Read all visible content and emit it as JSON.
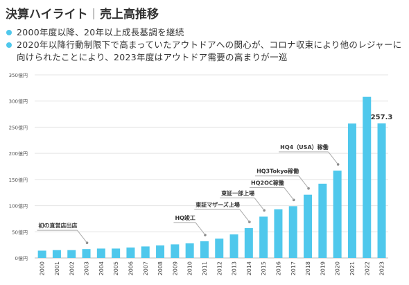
{
  "header": {
    "title": "決算ハイライト",
    "separator": "|",
    "subtitle": "売上高推移"
  },
  "bullets": [
    "2000年度以降、20年以上成長基調を継続",
    "2020年以降行動制限下で高まっていたアウトドアへの関心が、コロナ収束により他のレジャーに向けられたことにより、2023年度はアウトドア需要の高まりが一巡"
  ],
  "colors": {
    "bar": "#4fc8ec",
    "bullet_dot": "#4fc8ec",
    "grid": "#e4e4e4",
    "annotation_line": "#aaaaaa"
  },
  "chart_data": {
    "type": "bar",
    "categories": [
      "2000",
      "2001",
      "2002",
      "2003",
      "2004",
      "2005",
      "2006",
      "2007",
      "2008",
      "2009",
      "2010",
      "2011",
      "2012",
      "2013",
      "2014",
      "2015",
      "2016",
      "2017",
      "2018",
      "2019",
      "2020",
      "2021",
      "2022",
      "2023"
    ],
    "values": [
      14,
      15,
      15,
      17,
      18,
      18,
      20,
      22,
      24,
      26,
      28,
      32,
      37,
      45,
      57,
      79,
      93,
      99,
      121,
      142,
      167,
      257,
      308,
      257.3
    ],
    "ylim": [
      0,
      350
    ],
    "yticks": [
      0,
      50,
      100,
      150,
      200,
      250,
      300,
      350
    ],
    "ytick_labels": [
      "0億円",
      "50億円",
      "100億円",
      "150億円",
      "200億円",
      "250億円",
      "300億円",
      "350億円"
    ],
    "grid": true,
    "data_labels": [
      {
        "category": "2023",
        "text": "257.3"
      }
    ],
    "annotations": [
      {
        "text": "初の直営店出店",
        "category": "2003"
      },
      {
        "text": "HQ竣工",
        "category": "2011"
      },
      {
        "text": "東証マザーズ上場",
        "category": "2014"
      },
      {
        "text": "東証一部上場",
        "category": "2015"
      },
      {
        "text": "HQ2OC稼働",
        "category": "2017"
      },
      {
        "text": "HQ3Tokyo稼働",
        "category": "2018"
      },
      {
        "text": "HQ4（USA）稼働",
        "category": "2020"
      }
    ]
  }
}
